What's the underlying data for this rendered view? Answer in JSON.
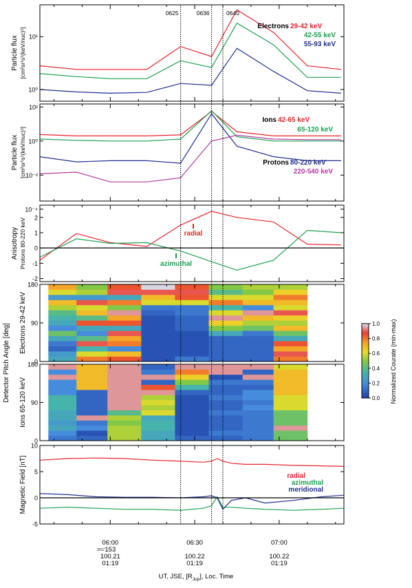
{
  "chart_data": [
    {
      "type": "line",
      "panel": "electrons",
      "ylabel": [
        "Particle flux",
        "[cm²sr¹s¹(keV/nuc)¹]"
      ],
      "yscale": "log",
      "ylim": [
        0.6,
        40
      ],
      "yticks": [
        {
          "v": 1,
          "label": "10⁰"
        },
        {
          "v": 10,
          "label": "10¹"
        }
      ],
      "event_labels": [
        "0625",
        "0636",
        "0640"
      ],
      "legend_title": "Electrons",
      "x": [
        "05:35",
        "05:48",
        "06:00",
        "06:13",
        "06:25",
        "06:36",
        "06:45",
        "06:58",
        "07:10",
        "07:22"
      ],
      "series": [
        {
          "name": "29-42 keV",
          "color": "#e8222b",
          "values": [
            2.8,
            2.4,
            2.4,
            2.4,
            6.5,
            4.2,
            32,
            12,
            2.8,
            2.4
          ]
        },
        {
          "name": "42-55 keV",
          "color": "#1aa050",
          "values": [
            2.0,
            1.75,
            1.6,
            1.6,
            3.5,
            2.6,
            18,
            7,
            1.7,
            1.7
          ]
        },
        {
          "name": "55-93 keV",
          "color": "#1f2f8f",
          "values": [
            1.0,
            0.9,
            0.85,
            0.88,
            1.3,
            1.2,
            6,
            2.2,
            0.95,
            0.85
          ]
        }
      ]
    },
    {
      "type": "line",
      "panel": "ions",
      "ylabel": [
        "Particle flux",
        "[cm²sr¹s¹(keV/nuc)¹]"
      ],
      "yscale": "log",
      "ylim": [
        0.0003,
        150
      ],
      "yticks": [
        {
          "v": 100,
          "label": "10²"
        },
        {
          "v": 1,
          "label": "10⁰"
        },
        {
          "v": 0.01,
          "label": "10⁻²"
        },
        {
          "v": 0.0001,
          "label": "10⁻⁴"
        }
      ],
      "legend_groups": [
        "Ions",
        "Protons"
      ],
      "x": [
        "05:35",
        "05:48",
        "06:00",
        "06:13",
        "06:25",
        "06:36",
        "06:45",
        "06:58",
        "07:10",
        "07:22"
      ],
      "series": [
        {
          "name": "42-65 keV",
          "group": "Ions",
          "color": "#e8222b",
          "values": [
            2.4,
            2.0,
            2.0,
            2.0,
            2.3,
            55,
            3.5,
            2.0,
            2.0,
            2.0
          ]
        },
        {
          "name": "65-120 keV",
          "group": "Ions",
          "color": "#1aa050",
          "values": [
            1.3,
            1.1,
            1.0,
            1.0,
            1.3,
            60,
            1.8,
            1.0,
            1.0,
            1.0
          ]
        },
        {
          "name": "80-220 keV",
          "group": "Protons",
          "color": "#1f2f8f",
          "values": [
            0.12,
            0.06,
            0.07,
            0.07,
            0.05,
            40,
            0.5,
            0.12,
            0.07,
            0.07
          ]
        },
        {
          "name": "220-540 keV",
          "group": "Protons",
          "color": "#b03ca0",
          "values": [
            0.012,
            0.015,
            0.004,
            0.004,
            0.007,
            1.0,
            2.2,
            1.3,
            1.2,
            1.2
          ]
        }
      ]
    },
    {
      "type": "line",
      "panel": "anisotropy",
      "ylabel": [
        "Anisotropy",
        "Protons 80-220 keV"
      ],
      "ylim": [
        -2.2,
        2.8
      ],
      "yticks": [
        {
          "v": 2,
          "label": "2"
        },
        {
          "v": 1,
          "label": "1"
        },
        {
          "v": 0,
          "label": "0"
        },
        {
          "v": -1,
          "label": "-1"
        },
        {
          "v": -2,
          "label": "-2"
        }
      ],
      "x": [
        "05:35",
        "05:48",
        "06:00",
        "06:13",
        "06:25",
        "06:36",
        "06:45",
        "06:58",
        "07:10",
        "07:22"
      ],
      "series": [
        {
          "name": "radial",
          "color": "#e8222b",
          "values": [
            -0.8,
            0.95,
            0.35,
            0.1,
            1.5,
            2.4,
            2.0,
            1.7,
            0.25,
            0.2
          ]
        },
        {
          "name": "azimuthal",
          "color": "#1aa050",
          "values": [
            -0.6,
            0.6,
            0.3,
            0.35,
            -0.2,
            -0.9,
            -1.45,
            -0.8,
            1.15,
            1.0
          ]
        }
      ]
    },
    {
      "type": "heatmap",
      "panel": "electron-pad",
      "ylabel": [
        "Electrons 29-42 keV"
      ],
      "shared_ylabel": "Detector Pitch Angle [deg]",
      "ylim": [
        0,
        180
      ],
      "yticks": [
        {
          "v": 180,
          "label": "180"
        },
        {
          "v": 90,
          "label": "90"
        },
        {
          "v": 0,
          "label": "0"
        }
      ],
      "colorbar": {
        "title": "Normalized Courate (min-max)",
        "ticks": [
          "1.0",
          "0.8",
          "0.6",
          "0.4",
          "0.2",
          "0.0"
        ]
      },
      "columns": [
        {
          "x0": "05:38",
          "x1": "05:48",
          "yfrom": 0,
          "yto": 180,
          "values": [
            0.3,
            0.25,
            0.1,
            0.15,
            0.3,
            0.45,
            0.2,
            0.3,
            0.35,
            0.4,
            0.55,
            0.7,
            0.25,
            0.6,
            0.75
          ]
        },
        {
          "x0": "05:48",
          "x1": "05:59",
          "yfrom": 0,
          "yto": 180,
          "values": [
            0.8,
            0.6,
            0.35,
            0.9,
            0.4,
            0.2,
            0.3,
            0.85,
            0.4,
            0.7,
            0.6,
            0.9,
            0.25,
            0.55,
            0.5
          ]
        },
        {
          "x0": "05:59",
          "x1": "06:11",
          "yfrom": 0,
          "yto": 180,
          "values": [
            0.85,
            0.7,
            0.2,
            0.8,
            0.75,
            0.9,
            0.3,
            0.85,
            0.75,
            0.95,
            0.5,
            0.8,
            0.3,
            0.9,
            0.85
          ]
        },
        {
          "x0": "06:11",
          "x1": "06:23",
          "yfrom": 0,
          "yto": 180,
          "values": [
            0.05,
            0.05,
            0.05,
            0.05,
            0.05,
            0.05,
            0.05,
            0.05,
            0.05,
            0.1,
            0.15,
            0.6,
            0.7,
            0.9,
            1.0
          ]
        },
        {
          "x0": "06:23",
          "x1": "06:35",
          "yfrom": 0,
          "yto": 180,
          "values": [
            0.15,
            0.05,
            0.05,
            0.05,
            0.05,
            0.05,
            0.1,
            0.1,
            0.1,
            0.15,
            0.15,
            0.6,
            0.85,
            0.9,
            0.85
          ]
        },
        {
          "x0": "06:35",
          "x1": "06:47",
          "yfrom": 0,
          "yto": 180,
          "values": [
            0.1,
            0.1,
            0.1,
            0.1,
            0.1,
            0.3,
            0.5,
            0.65,
            0.95,
            0.6,
            0.35,
            0.8,
            0.6,
            0.4,
            0.5
          ]
        },
        {
          "x0": "06:47",
          "x1": "06:58",
          "yfrom": 0,
          "yto": 180,
          "values": [
            0.1,
            0.1,
            0.1,
            0.1,
            0.1,
            0.15,
            0.45,
            0.55,
            0.7,
            0.95,
            0.2,
            0.7,
            0.6,
            0.5,
            0.55
          ]
        },
        {
          "x0": "06:58",
          "x1": "07:10",
          "yfrom": 0,
          "yto": 180,
          "values": [
            0.8,
            0.9,
            0.75,
            0.85,
            0.3,
            0.45,
            0.7,
            0.55,
            0.65,
            0.9,
            0.6,
            0.7,
            0.8,
            0.65,
            0.55
          ]
        }
      ]
    },
    {
      "type": "heatmap",
      "panel": "ion-pad",
      "ylabel": [
        "Ions 65-120 keV"
      ],
      "ylim": [
        0,
        180
      ],
      "yticks": [
        {
          "v": 180,
          "label": "180"
        },
        {
          "v": 90,
          "label": "90"
        },
        {
          "v": 0,
          "label": "0"
        }
      ],
      "columns": [
        {
          "x0": "05:38",
          "x1": "05:48",
          "yfrom": 0,
          "yto": 180,
          "values": [
            0.15,
            0.2,
            0.3,
            0.25,
            0.3,
            0.3,
            0.35,
            0.35,
            0.35,
            0.2,
            0.2,
            0.2,
            0.95,
            0.2,
            0.95
          ]
        },
        {
          "x0": "05:48",
          "x1": "05:59",
          "yfrom": 0,
          "yto": 180,
          "values": [
            0.1,
            0.05,
            0.2,
            0.15,
            0.95,
            0.1,
            0.1,
            0.1,
            0.1,
            0.1,
            0.7,
            0.7,
            0.7,
            0.7,
            0.7
          ]
        },
        {
          "x0": "05:59",
          "x1": "06:11",
          "yfrom": 0,
          "yto": 180,
          "values": [
            0.55,
            0.55,
            0.55,
            0.5,
            0.55,
            0.4,
            0.95,
            0.95,
            0.95,
            0.95,
            0.95,
            0.95,
            0.95,
            0.95,
            0.95
          ]
        },
        {
          "x0": "06:11",
          "x1": "06:23",
          "yfrom": 0,
          "yto": 180,
          "values": [
            0.3,
            0.3,
            0.35,
            0.35,
            0.3,
            0.6,
            0.55,
            0.6,
            0.55,
            0.95,
            0.85,
            0.1,
            0.95,
            0.15,
            0.1
          ]
        },
        {
          "x0": "06:23",
          "x1": "06:35",
          "yfrom": 0,
          "yto": 180,
          "values": [
            0.1,
            0.05,
            0.05,
            0.05,
            0.05,
            0.05,
            0.05,
            0.05,
            0.05,
            0.1,
            0.35,
            0.5,
            0.65,
            0.8,
            0.95
          ]
        },
        {
          "x0": "06:35",
          "x1": "06:47",
          "yfrom": 0,
          "yto": 180,
          "values": [
            0.1,
            0.15,
            0.1,
            0.1,
            0.1,
            0.15,
            0.1,
            0.1,
            0.15,
            0.1,
            0.1,
            0.15,
            0.05,
            0.95,
            0.95
          ]
        },
        {
          "x0": "06:47",
          "x1": "06:58",
          "yfrom": 0,
          "yto": 180,
          "values": [
            0.15,
            0.15,
            0.15,
            0.15,
            0.15,
            0.15,
            0.2,
            0.15,
            0.2,
            0.2,
            0.1,
            0.15,
            0.95,
            0.1,
            0.95
          ]
        },
        {
          "x0": "06:58",
          "x1": "07:10",
          "yfrom": 0,
          "yto": 180,
          "values": [
            0.45,
            0.45,
            0.95,
            0.45,
            0.45,
            0.45,
            0.6,
            0.6,
            0.6,
            0.7,
            0.7,
            0.7,
            0.7,
            0.7,
            0.6
          ]
        }
      ]
    },
    {
      "type": "line",
      "panel": "magnetic-field",
      "ylabel": [
        "Magnetic Field [nT]"
      ],
      "ylim": [
        -5,
        10
      ],
      "yticks": [
        {
          "v": 10,
          "label": "10"
        },
        {
          "v": 5,
          "label": "5"
        },
        {
          "v": 0,
          "label": "0"
        },
        {
          "v": -5,
          "label": "-5"
        }
      ],
      "x": [
        "05:35",
        "05:45",
        "05:55",
        "06:05",
        "06:15",
        "06:25",
        "06:33",
        "06:36",
        "06:38",
        "06:40",
        "06:43",
        "06:48",
        "06:55",
        "07:05",
        "07:15",
        "07:23"
      ],
      "series": [
        {
          "name": "radial",
          "color": "#e8222b",
          "values": [
            7.2,
            7.5,
            7.6,
            7.5,
            7.2,
            7.0,
            6.8,
            7.0,
            7.5,
            7.0,
            6.6,
            6.4,
            6.4,
            6.2,
            6.1,
            6.0
          ]
        },
        {
          "name": "azimuthal",
          "color": "#1aa050",
          "values": [
            -2.0,
            -1.8,
            -2.0,
            -2.2,
            -2.2,
            -2.4,
            -2.0,
            -1.5,
            0.2,
            -1.8,
            -1.8,
            -2.0,
            -2.2,
            -2.4,
            -2.2,
            -2.0
          ]
        },
        {
          "name": "meridional",
          "color": "#1f2f8f",
          "values": [
            0.8,
            0.6,
            0.2,
            0.1,
            0.1,
            0.0,
            0.2,
            0.4,
            0.0,
            -2.2,
            -0.5,
            0.0,
            -1.0,
            -0.5,
            0.2,
            0.5
          ]
        }
      ]
    }
  ],
  "xaxis": {
    "title": "UT, JSE, [R",
    "title_sub": "Jup",
    "title_tail": "], Loc. Time",
    "day_prefix": "2017",
    "ticks": [
      {
        "t": "06:00",
        "lines": [
          "06:00",
          "153",
          "100.21",
          "01:19"
        ]
      },
      {
        "t": "06:30",
        "lines": [
          "06:30",
          "",
          "100.22",
          "01:19"
        ]
      },
      {
        "t": "07:00",
        "lines": [
          "07:00",
          "",
          "100.22",
          "01:19"
        ]
      }
    ],
    "range": [
      "05:35",
      "07:23"
    ]
  },
  "event_lines": [
    "06:25",
    "06:36",
    "06:40"
  ]
}
